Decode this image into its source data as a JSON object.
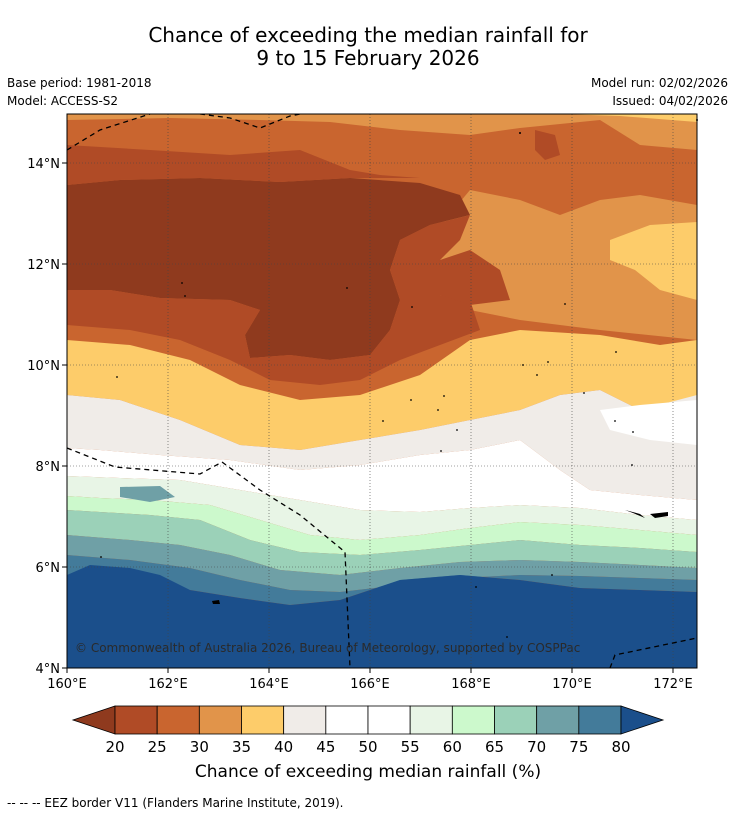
{
  "title": {
    "line1": "Chance of exceeding the median rainfall for",
    "line2": "9 to 15 February 2026"
  },
  "meta": {
    "base_period": "Base period: 1981-2018",
    "model": "Model: ACCESS-S2",
    "model_run": "Model run: 02/02/2026",
    "issued": "Issued: 04/02/2026"
  },
  "map": {
    "copyright": "© Commonwealth of Australia 2026, Bureau of Meteorology, supported by COSPPac",
    "x_ticks": [
      "160°E",
      "162°E",
      "164°E",
      "166°E",
      "168°E",
      "170°E",
      "172°E"
    ],
    "y_ticks": [
      "14°N",
      "12°N",
      "10°N",
      "8°N",
      "6°N",
      "4°N"
    ]
  },
  "colorbar": {
    "title": "Chance of exceeding median rainfall (%)",
    "ticks": [
      "20",
      "25",
      "30",
      "35",
      "40",
      "45",
      "50",
      "55",
      "60",
      "65",
      "70",
      "75",
      "80"
    ],
    "colors": [
      "#8f3a1e",
      "#b04b26",
      "#c9652f",
      "#e1944a",
      "#fdcc6a",
      "#f0ece8",
      "#ffffff",
      "#ffffff",
      "#e8f5e6",
      "#ccf9cc",
      "#9bd1b8",
      "#6fa0a6",
      "#437b9a",
      "#1b4f8b"
    ]
  },
  "footnote": "--  --  -- EEZ border V11 (Flanders Marine Institute, 2019)."
}
